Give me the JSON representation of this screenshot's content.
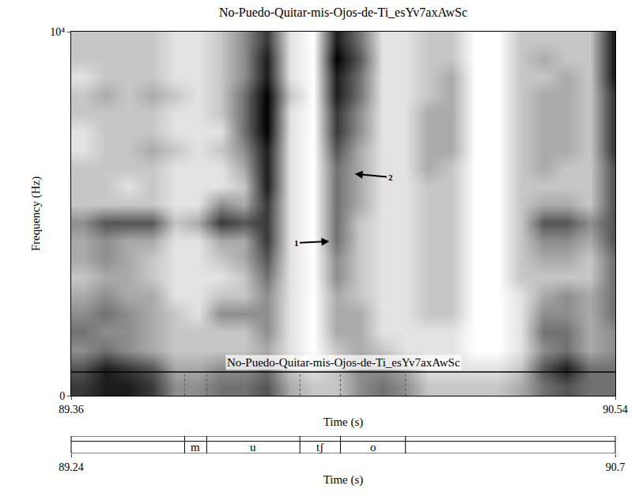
{
  "chart_data": {
    "type": "spectrogram",
    "title": "No-Puedo-Quitar-mis-Ojos-de-Ti_esYv7axAwSc",
    "x_label": "Time (s)",
    "y_label": "Frequency (Hz)",
    "xlim": [
      89.36,
      90.54
    ],
    "xticks": [
      89.36,
      90.54
    ],
    "ylim": [
      0,
      10000
    ],
    "yticks": [
      0,
      {
        "value": 10000,
        "label": "10⁴"
      }
    ],
    "color": "#000000",
    "time_bins": [
      89.36,
      89.41,
      89.46,
      89.51,
      89.56,
      89.61,
      89.66,
      89.71,
      89.76,
      89.81,
      89.86,
      89.91,
      89.96,
      90.01,
      90.06,
      90.11,
      90.16,
      90.21,
      90.26,
      90.31,
      90.36,
      90.41,
      90.46,
      90.51,
      90.56
    ],
    "freq_bins": [
      0,
      500,
      1000,
      1500,
      2000,
      2500,
      3000,
      3500,
      4000,
      4500,
      5000,
      5500,
      6000,
      6500,
      7000,
      7500,
      8000,
      8500,
      9000,
      9500,
      10000
    ],
    "intensity_range": [
      0,
      9
    ],
    "intensity_by_time": [
      [
        7,
        6,
        4,
        5,
        4,
        3,
        2,
        3,
        3,
        4,
        2,
        2,
        2,
        1,
        1,
        2,
        2,
        1,
        2,
        2
      ],
      [
        8,
        8,
        5,
        4,
        5,
        4,
        3,
        4,
        4,
        6,
        2,
        2,
        2,
        2,
        2,
        2,
        3,
        2,
        2,
        2
      ],
      [
        8,
        7,
        4,
        4,
        4,
        3,
        3,
        3,
        3,
        6,
        2,
        1,
        2,
        2,
        2,
        2,
        2,
        2,
        2,
        2
      ],
      [
        7,
        6,
        3,
        3,
        3,
        3,
        2,
        2,
        3,
        6,
        2,
        2,
        2,
        3,
        2,
        2,
        3,
        2,
        2,
        2
      ],
      [
        4,
        3,
        2,
        2,
        2,
        1,
        1,
        1,
        1,
        2,
        1,
        1,
        1,
        2,
        1,
        1,
        2,
        1,
        1,
        1
      ],
      [
        4,
        3,
        2,
        2,
        1,
        1,
        1,
        1,
        1,
        3,
        1,
        1,
        1,
        1,
        1,
        1,
        1,
        1,
        1,
        1
      ],
      [
        5,
        4,
        2,
        2,
        4,
        2,
        1,
        2,
        3,
        7,
        4,
        1,
        1,
        2,
        1,
        2,
        2,
        2,
        2,
        2
      ],
      [
        5,
        4,
        2,
        2,
        4,
        2,
        2,
        3,
        3,
        6,
        3,
        2,
        3,
        4,
        5,
        5,
        5,
        4,
        4,
        4
      ],
      [
        6,
        5,
        3,
        4,
        4,
        4,
        5,
        6,
        7,
        7,
        7,
        8,
        8,
        8,
        9,
        9,
        9,
        8,
        8,
        7
      ],
      [
        3,
        2,
        1,
        1,
        1,
        1,
        1,
        1,
        1,
        1,
        1,
        1,
        1,
        1,
        1,
        1,
        2,
        1,
        1,
        1
      ],
      [
        2,
        1,
        0,
        0,
        0,
        0,
        0,
        0,
        0,
        0,
        0,
        0,
        0,
        0,
        0,
        0,
        0,
        0,
        0,
        0
      ],
      [
        2,
        2,
        2,
        3,
        3,
        3,
        4,
        4,
        5,
        5,
        5,
        5,
        5,
        6,
        7,
        7,
        8,
        8,
        9,
        8
      ],
      [
        4,
        4,
        3,
        3,
        3,
        2,
        2,
        2,
        2,
        2,
        3,
        3,
        3,
        3,
        4,
        4,
        5,
        5,
        6,
        5
      ],
      [
        5,
        4,
        2,
        1,
        1,
        1,
        1,
        1,
        1,
        1,
        1,
        1,
        1,
        1,
        1,
        1,
        1,
        1,
        1,
        1
      ],
      [
        4,
        3,
        1,
        1,
        1,
        1,
        1,
        1,
        1,
        1,
        1,
        1,
        1,
        1,
        1,
        1,
        1,
        1,
        1,
        1
      ],
      [
        2,
        1,
        1,
        1,
        2,
        2,
        2,
        2,
        2,
        2,
        2,
        2,
        3,
        3,
        3,
        3,
        2,
        2,
        2,
        2
      ],
      [
        2,
        1,
        1,
        1,
        2,
        2,
        2,
        2,
        2,
        2,
        2,
        2,
        2,
        3,
        3,
        3,
        3,
        3,
        2,
        2
      ],
      [
        2,
        1,
        0,
        0,
        0,
        0,
        0,
        0,
        0,
        0,
        0,
        0,
        0,
        0,
        0,
        0,
        0,
        0,
        0,
        0
      ],
      [
        2,
        1,
        0,
        0,
        0,
        0,
        0,
        0,
        0,
        0,
        0,
        0,
        0,
        0,
        0,
        0,
        0,
        0,
        0,
        0
      ],
      [
        3,
        2,
        1,
        1,
        1,
        1,
        2,
        2,
        2,
        2,
        2,
        2,
        2,
        2,
        2,
        2,
        2,
        2,
        2,
        2
      ],
      [
        5,
        6,
        4,
        5,
        4,
        3,
        2,
        3,
        4,
        6,
        3,
        2,
        3,
        3,
        3,
        3,
        3,
        2,
        3,
        2
      ],
      [
        6,
        8,
        5,
        5,
        4,
        4,
        2,
        3,
        4,
        6,
        3,
        2,
        2,
        3,
        3,
        3,
        3,
        3,
        2,
        2
      ],
      [
        5,
        5,
        3,
        3,
        3,
        3,
        2,
        2,
        3,
        4,
        2,
        2,
        2,
        2,
        2,
        2,
        2,
        2,
        2,
        2
      ],
      [
        5,
        5,
        4,
        4,
        5,
        5,
        5,
        5,
        6,
        6,
        6,
        6,
        6,
        7,
        7,
        7,
        7,
        8,
        8,
        8
      ]
    ],
    "reference_line": {
      "y": 650,
      "label": "No-Puedo-Quitar-mis-Ojos-de-Ti_esYv7axAwSc"
    },
    "tier": {
      "intervals": [
        {
          "start": 89.606,
          "end": 89.654,
          "label": "m"
        },
        {
          "start": 89.654,
          "end": 89.856,
          "label": "u"
        },
        {
          "start": 89.856,
          "end": 89.944,
          "label": "tʃ"
        },
        {
          "start": 89.944,
          "end": 90.085,
          "label": "o"
        }
      ]
    },
    "tier_axis": {
      "label": "Time (s)",
      "xlim": [
        89.24,
        90.7
      ],
      "xticks": [
        89.24,
        90.7
      ]
    },
    "annotations": [
      {
        "text": "1",
        "x": 89.92,
        "y": 4240
      },
      {
        "text": "2",
        "x": 89.975,
        "y": 6090
      }
    ]
  }
}
